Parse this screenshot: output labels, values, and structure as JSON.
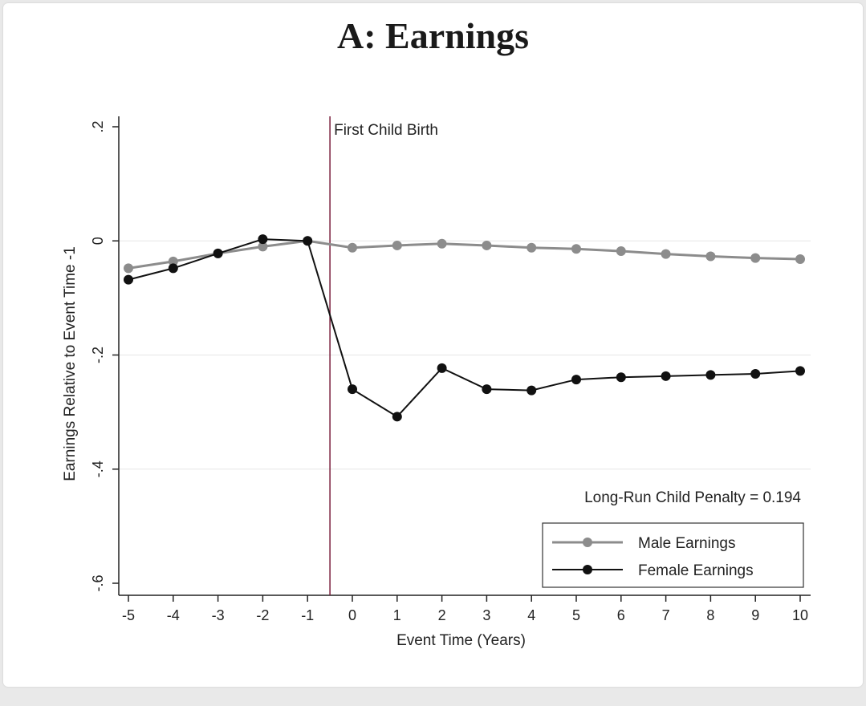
{
  "chart_data": {
    "type": "line",
    "title": "A: Earnings",
    "xlabel": "Event Time (Years)",
    "ylabel": "Earnings Relative to Event Time -1",
    "x": [
      -5,
      -4,
      -3,
      -2,
      -1,
      0,
      1,
      2,
      3,
      4,
      5,
      6,
      7,
      8,
      9,
      10
    ],
    "xlim": [
      -5,
      10
    ],
    "ylim": [
      -0.6,
      0.2
    ],
    "x_ticks": [
      "-5",
      "-4",
      "-3",
      "-2",
      "-1",
      "0",
      "1",
      "2",
      "3",
      "4",
      "5",
      "6",
      "7",
      "8",
      "9",
      "10"
    ],
    "y_ticks": [
      {
        "value": 0.2,
        "label": ".2"
      },
      {
        "value": 0,
        "label": "0"
      },
      {
        "value": -0.2,
        "label": "-.2"
      },
      {
        "value": -0.4,
        "label": "-.4"
      },
      {
        "value": -0.6,
        "label": "-.6"
      }
    ],
    "grid": "horizontal",
    "event_line": {
      "x": -0.5,
      "label": "First Child Birth",
      "color": "#7a1f3d"
    },
    "annotation": "Long-Run Child Penalty = 0.194",
    "legend_position": "bottom-right",
    "series": [
      {
        "name": "Male Earnings",
        "color": "#8c8c8c",
        "values": [
          -0.048,
          -0.036,
          -0.022,
          -0.01,
          0.0,
          -0.012,
          -0.008,
          -0.005,
          -0.008,
          -0.012,
          -0.014,
          -0.018,
          -0.023,
          -0.027,
          -0.03,
          -0.032
        ]
      },
      {
        "name": "Female Earnings",
        "color": "#111111",
        "values": [
          -0.068,
          -0.048,
          -0.022,
          0.003,
          0.0,
          -0.26,
          -0.308,
          -0.223,
          -0.26,
          -0.262,
          -0.243,
          -0.239,
          -0.237,
          -0.235,
          -0.233,
          -0.228
        ]
      }
    ]
  }
}
